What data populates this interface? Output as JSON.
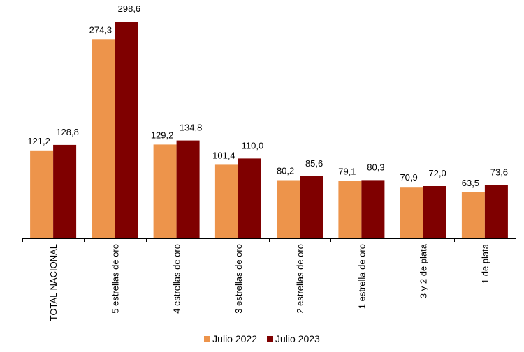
{
  "chart_data": {
    "type": "bar",
    "title": "",
    "xlabel": "",
    "ylabel": "",
    "ylim": [
      0,
      300
    ],
    "grid": false,
    "legend_position": "bottom",
    "categories": [
      "TOTAL NACIONAL",
      "5 estrellas de oro",
      "4 estrellas de oro",
      "3 estrellas de oro",
      "2 estrellas de oro",
      "1 estrella de oro",
      "3 y 2 de plata",
      "1 de plata"
    ],
    "series": [
      {
        "name": "Julio 2022",
        "color": "#ED944B",
        "values": [
          121.2,
          274.3,
          129.2,
          101.4,
          80.2,
          79.1,
          70.9,
          63.5
        ],
        "labels": [
          "121,2",
          "274,3",
          "129,2",
          "101,4",
          "80,2",
          "79,1",
          "70,9",
          "63,5"
        ]
      },
      {
        "name": "Julio 2023",
        "color": "#7F0000",
        "values": [
          128.8,
          298.6,
          134.8,
          110.0,
          85.6,
          80.3,
          72.0,
          73.6
        ],
        "labels": [
          "128,8",
          "298,6",
          "134,8",
          "110,0",
          "85,6",
          "80,3",
          "72,0",
          "73,6"
        ]
      }
    ]
  }
}
